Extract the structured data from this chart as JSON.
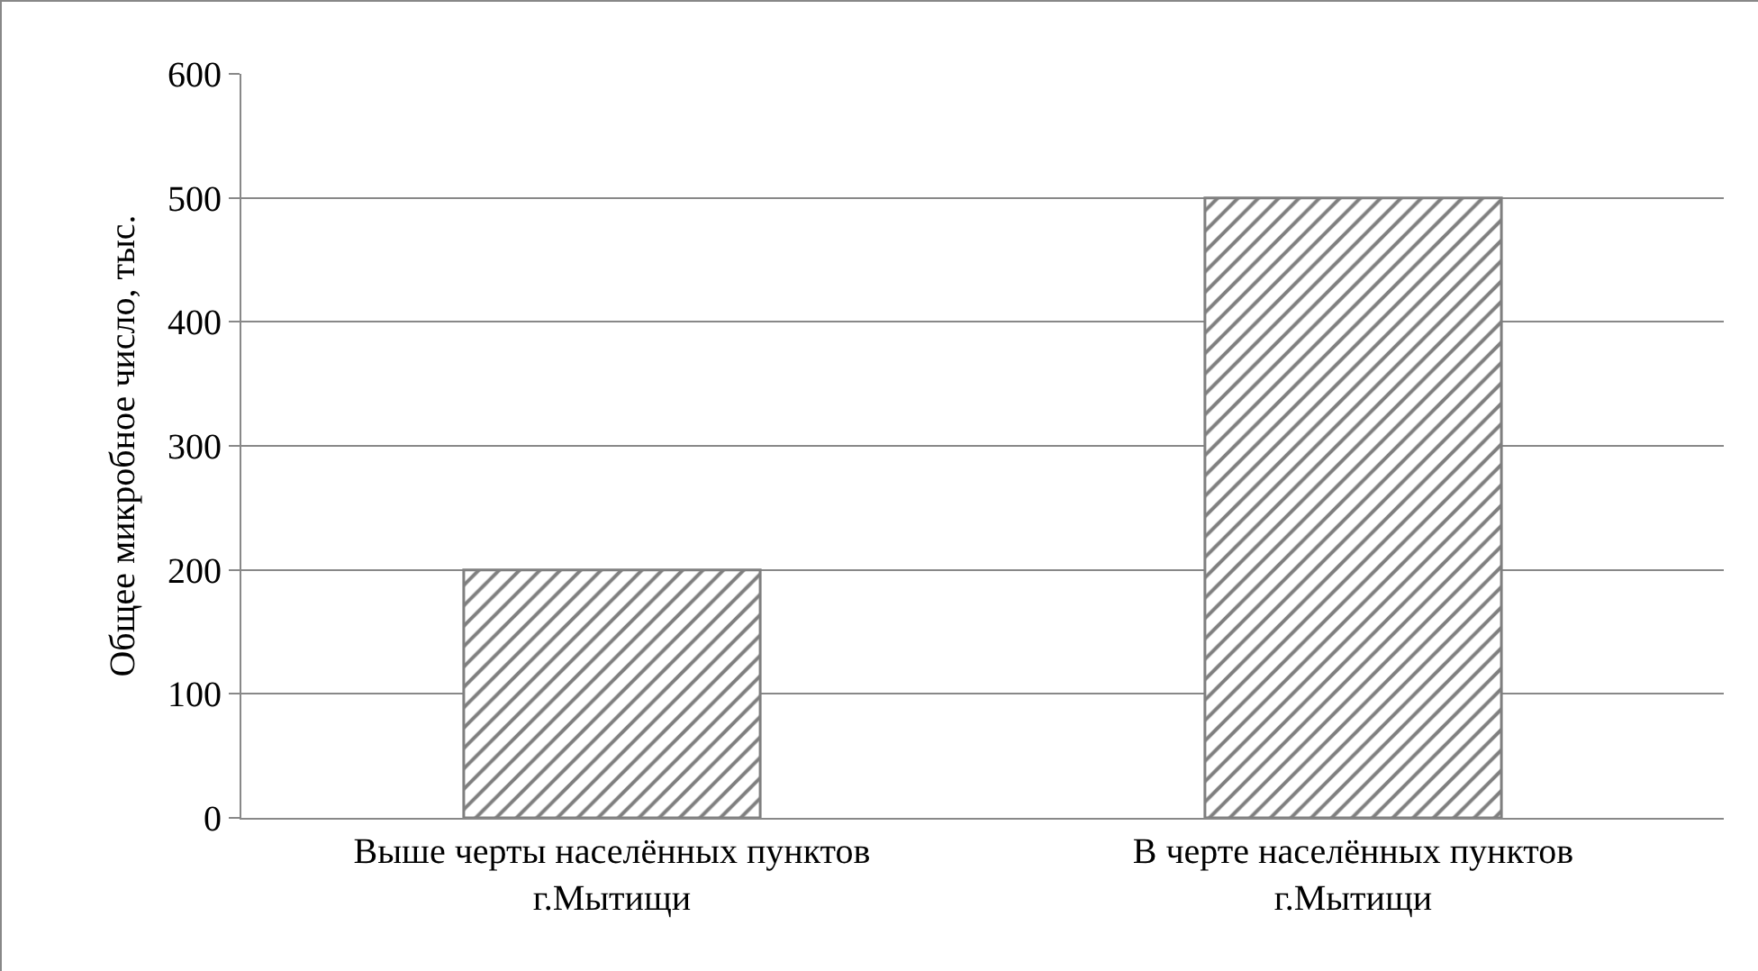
{
  "chart_data": {
    "type": "bar",
    "ylabel": "Общее микробное число, тыс.",
    "categories": [
      "Выше черты населённых пунктов\nг.Мытищи",
      "В черте населённых пунктов\nг.Мытищи"
    ],
    "values": [
      200,
      500
    ],
    "color": "#7f7f7f",
    "ylim": [
      0,
      600
    ],
    "yticks": [
      0,
      100,
      200,
      300,
      400,
      500,
      600
    ],
    "grid": "y",
    "legend": false
  }
}
